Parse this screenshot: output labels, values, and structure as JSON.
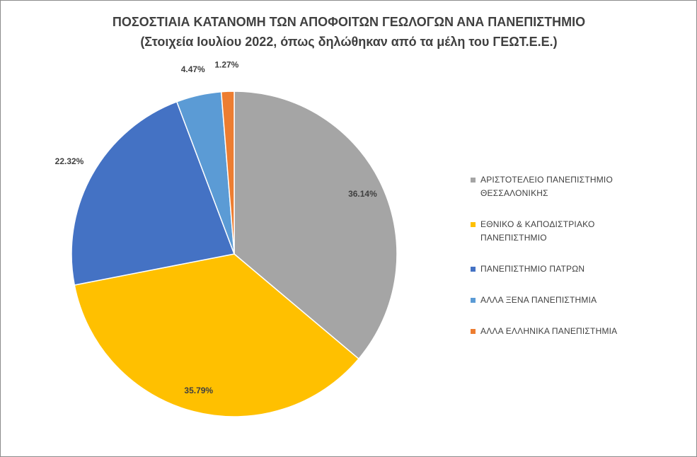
{
  "chart_data": {
    "type": "pie",
    "title": "ΠΟΣΟΣΤΙΑΙΑ ΚΑΤΑΝΟΜΗ ΤΩΝ ΑΠΟΦΟΙΤΩΝ ΓΕΩΛΟΓΩΝ ΑΝΑ ΠΑΝΕΠΙΣΤΗΜΙΟ",
    "subtitle": "(Στοιχεία Ιουλίου 2022, όπως δηλώθηκαν από τα μέλη του ΓΕΩΤ.Ε.Ε.)",
    "categories": [
      "ΑΡΙΣΤΟΤΕΛΕΙΟ ΠΑΝΕΠΙΣΤΗΜΙΟ ΘΕΣΣΑΛΟΝΙΚΗΣ",
      "ΕΘΝΙΚΟ & ΚΑΠΟΔΙΣΤΡΙΑΚΟ ΠΑΝΕΠΙΣΤΗΜΙΟ",
      "ΠΑΝΕΠΙΣΤΗΜΙΟ ΠΑΤΡΩΝ",
      "ΑΛΛΑ ΞΕΝΑ ΠΑΝΕΠΙΣΤΗΜΙΑ",
      "ΑΛΛΑ ΕΛΛΗΝΙΚΑ ΠΑΝΕΠΙΣΤΗΜΙΑ"
    ],
    "values": [
      36.14,
      35.79,
      22.32,
      4.47,
      1.27
    ],
    "value_labels": [
      "36.14%",
      "35.79%",
      "22.32%",
      "4.47%",
      "1.27%"
    ],
    "colors": [
      "#a5a5a5",
      "#ffc000",
      "#4472c4",
      "#5b9bd5",
      "#ed7d31"
    ],
    "legend": "right"
  }
}
